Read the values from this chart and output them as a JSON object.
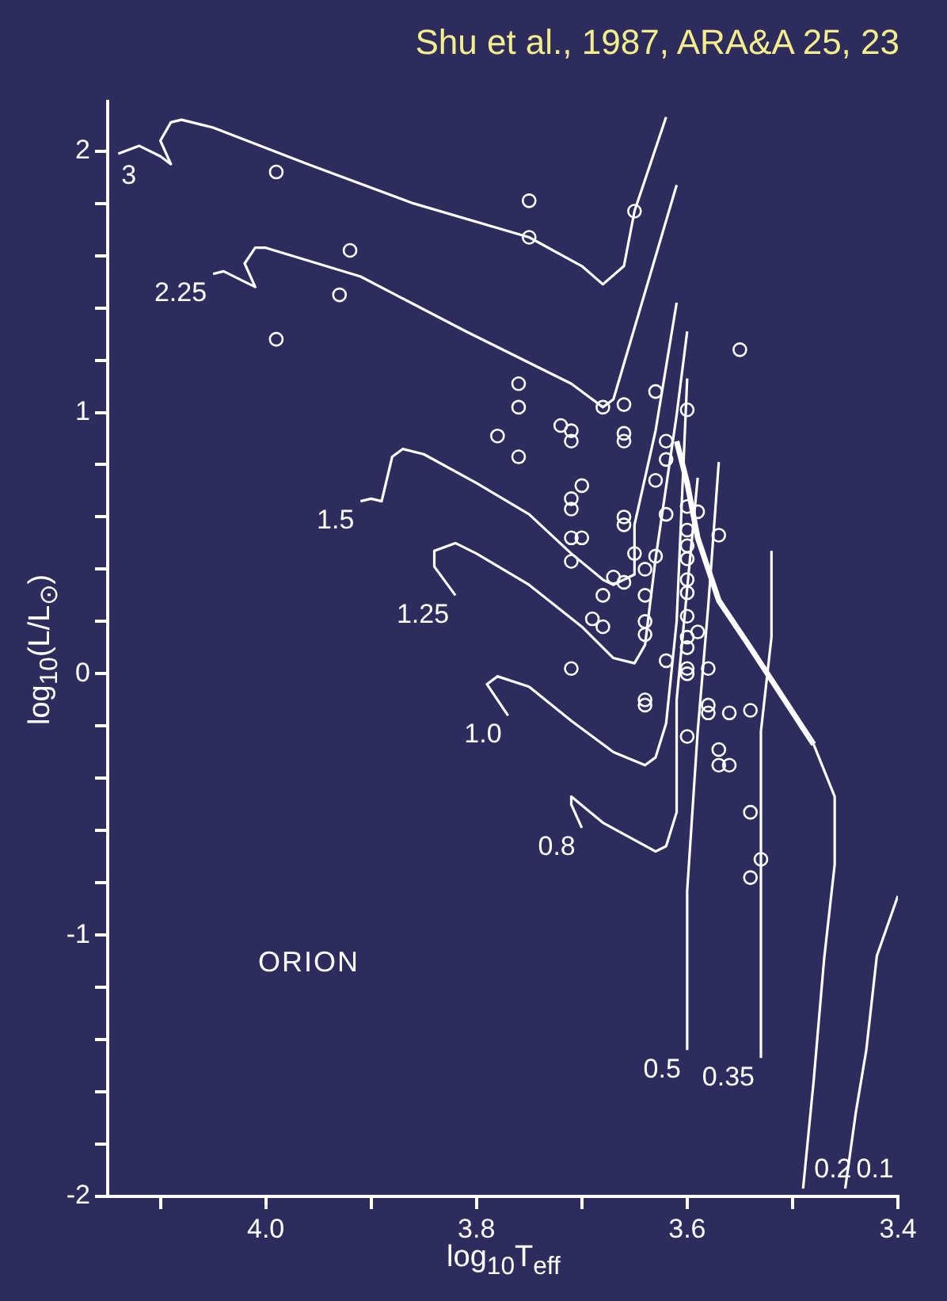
{
  "chart_data": {
    "type": "line",
    "title": "Shu et al., 1987, ARA&A 25, 23",
    "xlabel": "log$_{10}$T$_{eff}$",
    "ylabel": "log$_{10}$(L/L$_{⊙}$)",
    "annotations": [
      "ORION"
    ],
    "xlim": [
      4.15,
      3.4
    ],
    "xticks": [
      {
        "value": 4.1,
        "label": null
      },
      {
        "value": 4.0,
        "label": "4.0"
      },
      {
        "value": 3.9,
        "label": null
      },
      {
        "value": 3.8,
        "label": "3.8"
      },
      {
        "value": 3.7,
        "label": null
      },
      {
        "value": 3.6,
        "label": "3.6"
      },
      {
        "value": 3.5,
        "label": null
      },
      {
        "value": 3.4,
        "label": "3.4"
      }
    ],
    "ylim": [
      -2,
      2.19
    ],
    "yticks": [
      -2,
      {
        "value": -1.8,
        "label": null
      },
      {
        "value": -1.6,
        "label": null
      },
      {
        "value": -1.4,
        "label": null
      },
      {
        "value": -1.2,
        "label": null
      },
      -1,
      {
        "value": -0.8,
        "label": null
      },
      {
        "value": -0.6,
        "label": null
      },
      {
        "value": -0.4,
        "label": null
      },
      {
        "value": -0.2,
        "label": null
      },
      0,
      {
        "value": 0.2,
        "label": null
      },
      {
        "value": 0.4,
        "label": null
      },
      {
        "value": 0.6,
        "label": null
      },
      {
        "value": 0.8,
        "label": null
      },
      1,
      {
        "value": 1.2,
        "label": null
      },
      {
        "value": 1.4,
        "label": null
      },
      {
        "value": 1.6,
        "label": null
      },
      {
        "value": 1.8,
        "label": null
      },
      2
    ],
    "grid": false,
    "legend": false,
    "series": [
      {
        "type": "scatter",
        "marker": "circle",
        "color": "#ffffff",
        "x": [
          3.99,
          3.75,
          3.75,
          3.92,
          3.93,
          3.99,
          3.76,
          3.76,
          3.78,
          3.76,
          3.72,
          3.65,
          3.55,
          3.68,
          3.66,
          3.63,
          3.6,
          3.71,
          3.71,
          3.66,
          3.66,
          3.62,
          3.62,
          3.63,
          3.62,
          3.7,
          3.71,
          3.71,
          3.66,
          3.66,
          3.6,
          3.59,
          3.6,
          3.6,
          3.6,
          3.57,
          3.71,
          3.7,
          3.71,
          3.65,
          3.63,
          3.64,
          3.67,
          3.66,
          3.68,
          3.6,
          3.6,
          3.64,
          3.6,
          3.59,
          3.6,
          3.69,
          3.68,
          3.64,
          3.64,
          3.6,
          3.62,
          3.71,
          3.6,
          3.6,
          3.58,
          3.64,
          3.64,
          3.58,
          3.58,
          3.56,
          3.54,
          3.6,
          3.57,
          3.57,
          3.56,
          3.54,
          3.53,
          3.54
        ],
        "values": [
          1.92,
          1.81,
          1.67,
          1.62,
          1.45,
          1.28,
          1.11,
          1.02,
          0.91,
          0.83,
          0.95,
          1.77,
          1.24,
          1.02,
          1.03,
          1.08,
          1.01,
          0.93,
          0.89,
          0.92,
          0.89,
          0.89,
          0.82,
          0.74,
          0.61,
          0.72,
          0.67,
          0.63,
          0.6,
          0.57,
          0.64,
          0.62,
          0.55,
          0.49,
          0.44,
          0.53,
          0.52,
          0.52,
          0.43,
          0.46,
          0.45,
          0.4,
          0.37,
          0.35,
          0.3,
          0.36,
          0.31,
          0.3,
          0.22,
          0.16,
          0.14,
          0.21,
          0.18,
          0.2,
          0.15,
          0.1,
          0.05,
          0.02,
          0.02,
          0.0,
          0.02,
          -0.1,
          -0.12,
          -0.12,
          -0.15,
          -0.15,
          -0.14,
          -0.24,
          -0.29,
          -0.35,
          -0.35,
          -0.53,
          -0.71,
          -0.78
        ]
      },
      {
        "name": "3",
        "color": "#ffffff",
        "x": [
          4.14,
          4.12,
          4.1,
          4.09,
          4.1,
          4.09,
          4.08,
          4.05,
          3.96,
          3.86,
          3.75,
          3.7,
          3.68,
          3.66,
          3.65,
          3.62
        ],
        "values": [
          1.99,
          2.02,
          1.98,
          1.95,
          2.04,
          2.11,
          2.12,
          2.09,
          1.95,
          1.8,
          1.67,
          1.56,
          1.49,
          1.56,
          1.77,
          2.13
        ]
      },
      {
        "name": "2.25",
        "color": "#ffffff",
        "x": [
          4.05,
          4.04,
          4.02,
          4.01,
          4.02,
          4.01,
          4.0,
          3.91,
          3.81,
          3.71,
          3.68,
          3.67,
          3.61
        ],
        "values": [
          1.53,
          1.54,
          1.5,
          1.48,
          1.57,
          1.63,
          1.63,
          1.52,
          1.31,
          1.11,
          1.02,
          1.05,
          1.87
        ]
      },
      {
        "name": "1.5",
        "color": "#ffffff",
        "x": [
          3.91,
          3.9,
          3.89,
          3.88,
          3.87,
          3.85,
          3.8,
          3.75,
          3.71,
          3.68,
          3.67,
          3.65,
          3.65,
          3.63,
          3.61
        ],
        "values": [
          0.66,
          0.67,
          0.66,
          0.83,
          0.86,
          0.84,
          0.73,
          0.61,
          0.46,
          0.36,
          0.34,
          0.38,
          0.57,
          0.93,
          1.42
        ]
      },
      {
        "name": "1.25",
        "color": "#ffffff",
        "x": [
          3.82,
          3.84,
          3.84,
          3.82,
          3.8,
          3.75,
          3.7,
          3.67,
          3.65,
          3.64,
          3.63,
          3.61,
          3.6
        ],
        "values": [
          0.3,
          0.41,
          0.47,
          0.5,
          0.46,
          0.34,
          0.18,
          0.06,
          0.04,
          0.11,
          0.44,
          0.99,
          1.31
        ]
      },
      {
        "name": "1.0",
        "color": "#ffffff",
        "x": [
          3.77,
          3.79,
          3.78,
          3.75,
          3.71,
          3.67,
          3.64,
          3.63,
          3.62,
          3.61,
          3.6
        ],
        "values": [
          -0.16,
          -0.04,
          -0.01,
          -0.05,
          -0.18,
          -0.3,
          -0.35,
          -0.32,
          -0.19,
          0.2,
          1.13
        ]
      },
      {
        "name": "0.8",
        "color": "#ffffff",
        "x": [
          3.7,
          3.71,
          3.71,
          3.68,
          3.63,
          3.62,
          3.61,
          3.61,
          3.59
        ],
        "values": [
          -0.59,
          -0.5,
          -0.47,
          -0.57,
          -0.68,
          -0.66,
          -0.53,
          -0.1,
          0.75
        ]
      },
      {
        "name": "0.5",
        "color": "#ffffff",
        "x": [
          3.6,
          3.6,
          3.59,
          3.58,
          3.57
        ],
        "values": [
          -1.44,
          -0.83,
          -0.22,
          0.26,
          0.81
        ]
      },
      {
        "name": "0.35",
        "color": "#ffffff",
        "x": [
          3.53,
          3.53,
          3.53,
          3.52,
          3.52
        ],
        "values": [
          -1.47,
          -0.83,
          -0.22,
          0.14,
          0.47
        ]
      },
      {
        "name": "0.2",
        "color": "#ffffff",
        "x": [
          3.49,
          3.48,
          3.47,
          3.46,
          3.46,
          3.48
        ],
        "values": [
          -1.97,
          -1.56,
          -1.09,
          -0.73,
          -0.47,
          -0.27
        ]
      },
      {
        "name": "0.1",
        "color": "#ffffff",
        "x": [
          3.45,
          3.44,
          3.43,
          3.42,
          3.4
        ],
        "values": [
          -1.97,
          -1.68,
          -1.44,
          -1.08,
          -0.85
        ]
      },
      {
        "color": "#ffffff",
        "x": [
          3.61,
          3.6,
          3.59,
          3.57,
          3.54,
          3.48
        ],
        "values": [
          0.89,
          0.73,
          0.52,
          0.28,
          0.1,
          -0.27
        ]
      }
    ]
  }
}
